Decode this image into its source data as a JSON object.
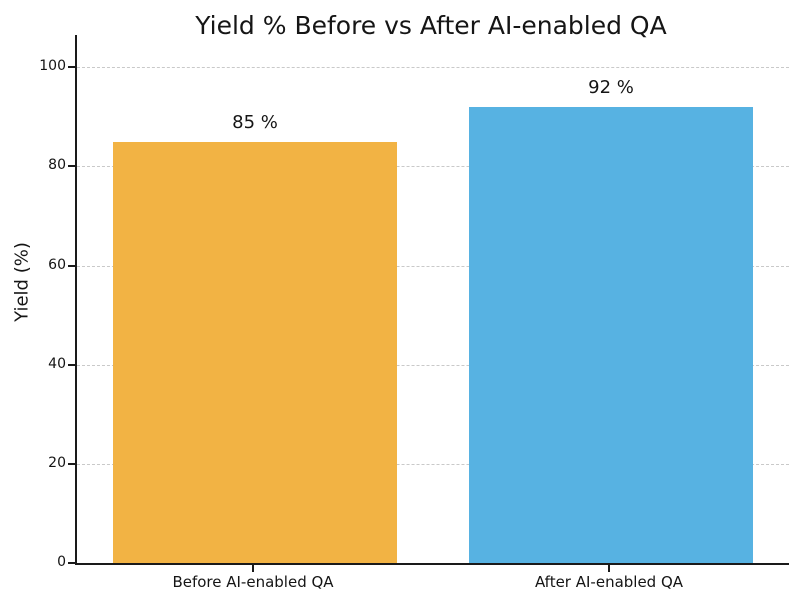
{
  "chart_data": {
    "type": "bar",
    "title": "Yield % Before vs After AI-enabled QA",
    "xlabel": "",
    "ylabel": "Yield (%)",
    "categories": [
      "Before AI-enabled QA",
      "After AI-enabled QA"
    ],
    "values": [
      85,
      92
    ],
    "value_labels": [
      "85 %",
      "92 %"
    ],
    "bar_colors": [
      "#F2B344",
      "#57B2E2"
    ],
    "yticks": [
      0,
      20,
      40,
      60,
      80,
      100
    ],
    "ylim": [
      0,
      106.5
    ],
    "grid": "horizontal-dashed-y-only",
    "grid_color": "#c9c9c9",
    "legend": "none",
    "background_color": "#ffffff"
  }
}
